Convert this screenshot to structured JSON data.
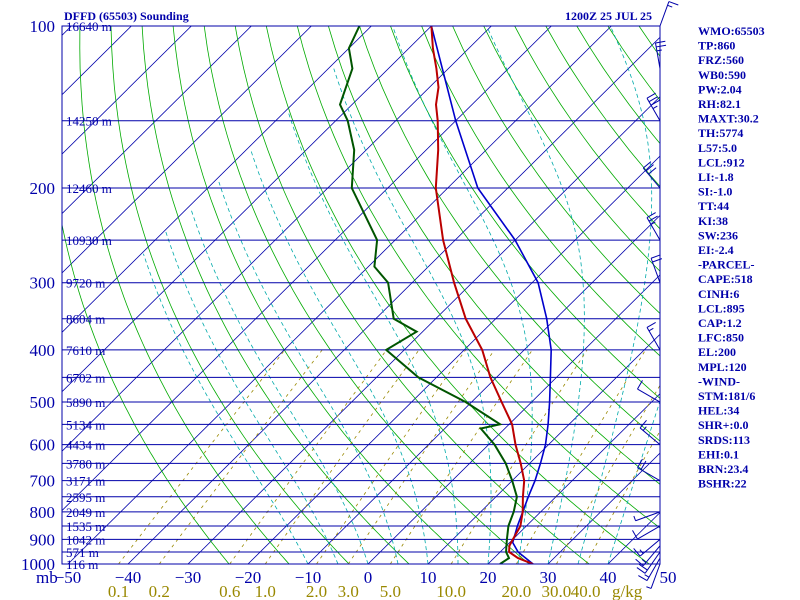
{
  "title_left": "DFFD (65503) Sounding",
  "title_right": "1200Z 25 JUL 25",
  "axis_corner_label": "mb",
  "w_unit_label": "g/kg",
  "colors": {
    "isobar": "#0000aa",
    "isotherm": "#0000aa",
    "dry_adiabat": "#00aa00",
    "moist_adiabat": "#00aaaa",
    "mixing_ratio": "#998800",
    "temperature": "#bb0000",
    "dewpoint": "#005500",
    "parcel": "#0000cc",
    "text": "#0000aa"
  },
  "indices": [
    "WMO:65503",
    "TP:860",
    "FRZ:560",
    "WB0:590",
    "PW:2.04",
    "RH:82.1",
    "MAXT:30.2",
    "TH:5774",
    "L57:5.0",
    "LCL:912",
    "LI:-1.8",
    "SI:-1.0",
    "TT:44",
    "KI:38",
    "SW:236",
    "EI:-2.4",
    "-PARCEL-",
    "CAPE:518",
    "CINH:6",
    "LCL:895",
    "CAP:1.2",
    "LFC:850",
    "EL:200",
    "MPL:120",
    "-WIND-",
    "STM:181/6",
    "HEL:34",
    "SHR+:0.0",
    "SRDS:113",
    "EHI:0.1",
    "BRN:23.4",
    "BSHR:22"
  ],
  "chart_data": {
    "type": "skew-t log-p",
    "pressure_ticks": [
      100,
      200,
      300,
      400,
      500,
      600,
      700,
      800,
      900,
      1000
    ],
    "temperature_ticks": [
      -50,
      -40,
      -30,
      -20,
      -10,
      0,
      10,
      20,
      30,
      40,
      50
    ],
    "mixing_ratio_labels": [
      "0.1",
      "0.2",
      "0.6",
      "1.0",
      "2.0",
      "3.0",
      "5.0",
      "10.0",
      "20.0",
      "30.0",
      "40.0"
    ],
    "mixing_ratio_values": [
      0.1,
      0.2,
      0.6,
      1.0,
      2.0,
      3.0,
      5.0,
      10.0,
      20.0,
      30.0,
      40.0
    ],
    "plim": [
      100,
      1000
    ],
    "tlim_at_bottom": [
      -50,
      50
    ],
    "heights": [
      {
        "p": 100,
        "label": "16640 m"
      },
      {
        "p": 150,
        "label": "14250 m"
      },
      {
        "p": 200,
        "label": "12460 m"
      },
      {
        "p": 250,
        "label": "10930 m"
      },
      {
        "p": 300,
        "label": "9720 m"
      },
      {
        "p": 350,
        "label": "8604 m"
      },
      {
        "p": 400,
        "label": "7610 m"
      },
      {
        "p": 450,
        "label": "6702 m"
      },
      {
        "p": 500,
        "label": "5890 m"
      },
      {
        "p": 550,
        "label": "5134 m"
      },
      {
        "p": 600,
        "label": "4434 m"
      },
      {
        "p": 650,
        "label": "3780 m"
      },
      {
        "p": 700,
        "label": "3171 m"
      },
      {
        "p": 750,
        "label": "2595 m"
      },
      {
        "p": 800,
        "label": "2049 m"
      },
      {
        "p": 850,
        "label": "1535 m"
      },
      {
        "p": 900,
        "label": "1042 m"
      },
      {
        "p": 950,
        "label": "571 m"
      },
      {
        "p": 1000,
        "label": "116 m"
      }
    ],
    "temperature_profile": [
      [
        1000,
        27.5
      ],
      [
        975,
        24.0
      ],
      [
        950,
        21.5
      ],
      [
        925,
        20.5
      ],
      [
        900,
        20.0
      ],
      [
        850,
        19.0
      ],
      [
        800,
        17.0
      ],
      [
        750,
        14.5
      ],
      [
        700,
        12.0
      ],
      [
        650,
        8.5
      ],
      [
        600,
        4.5
      ],
      [
        550,
        0.5
      ],
      [
        500,
        -5.0
      ],
      [
        450,
        -11.0
      ],
      [
        400,
        -17.0
      ],
      [
        350,
        -25.0
      ],
      [
        300,
        -33.0
      ],
      [
        250,
        -42.0
      ],
      [
        200,
        -52.0
      ],
      [
        170,
        -58.0
      ],
      [
        150,
        -63.0
      ],
      [
        140,
        -66.0
      ],
      [
        130,
        -68.5
      ],
      [
        120,
        -72.0
      ],
      [
        110,
        -76.0
      ],
      [
        100,
        -80.0
      ]
    ],
    "dewpoint_profile": [
      [
        1000,
        22.0
      ],
      [
        975,
        22.5
      ],
      [
        950,
        21.0
      ],
      [
        925,
        20.0
      ],
      [
        900,
        19.0
      ],
      [
        850,
        17.0
      ],
      [
        800,
        15.5
      ],
      [
        750,
        13.5
      ],
      [
        700,
        10.0
      ],
      [
        650,
        6.0
      ],
      [
        600,
        1.0
      ],
      [
        560,
        -4.0
      ],
      [
        550,
        -1.5
      ],
      [
        500,
        -11.0
      ],
      [
        450,
        -23.0
      ],
      [
        400,
        -33.0
      ],
      [
        370,
        -31.0
      ],
      [
        350,
        -37.0
      ],
      [
        300,
        -44.0
      ],
      [
        280,
        -49.0
      ],
      [
        250,
        -53.0
      ],
      [
        200,
        -66.0
      ],
      [
        170,
        -72.0
      ],
      [
        150,
        -78.0
      ],
      [
        140,
        -82.0
      ],
      [
        120,
        -86.0
      ],
      [
        110,
        -90.0
      ],
      [
        100,
        -92.0
      ]
    ],
    "parcel_profile": [
      [
        1000,
        27.5
      ],
      [
        950,
        23.0
      ],
      [
        912,
        20.5
      ],
      [
        850,
        18.5
      ],
      [
        800,
        17.0
      ],
      [
        750,
        15.4
      ],
      [
        700,
        13.8
      ],
      [
        650,
        11.8
      ],
      [
        600,
        9.5
      ],
      [
        550,
        6.5
      ],
      [
        500,
        3.0
      ],
      [
        450,
        -1.0
      ],
      [
        400,
        -5.5
      ],
      [
        350,
        -11.5
      ],
      [
        300,
        -19.0
      ],
      [
        250,
        -30.0
      ],
      [
        200,
        -45.0
      ],
      [
        150,
        -60.0
      ],
      [
        100,
        -80.0
      ]
    ],
    "wind_barbs": [
      {
        "p": 1000,
        "dir": 200,
        "kt": 5
      },
      {
        "p": 975,
        "dir": 210,
        "kt": 15
      },
      {
        "p": 950,
        "dir": 215,
        "kt": 20
      },
      {
        "p": 925,
        "dir": 220,
        "kt": 15
      },
      {
        "p": 900,
        "dir": 230,
        "kt": 15
      },
      {
        "p": 850,
        "dir": 240,
        "kt": 10
      },
      {
        "p": 800,
        "dir": 250,
        "kt": 5
      },
      {
        "p": 700,
        "dir": 300,
        "kt": 20
      },
      {
        "p": 600,
        "dir": 310,
        "kt": 15
      },
      {
        "p": 500,
        "dir": 300,
        "kt": 10
      },
      {
        "p": 400,
        "dir": 330,
        "kt": 15
      },
      {
        "p": 300,
        "dir": 340,
        "kt": 20
      },
      {
        "p": 250,
        "dir": 330,
        "kt": 25
      },
      {
        "p": 200,
        "dir": 320,
        "kt": 30
      },
      {
        "p": 150,
        "dir": 330,
        "kt": 35
      },
      {
        "p": 120,
        "dir": 350,
        "kt": 25
      },
      {
        "p": 100,
        "dir": 20,
        "kt": 15
      }
    ]
  }
}
